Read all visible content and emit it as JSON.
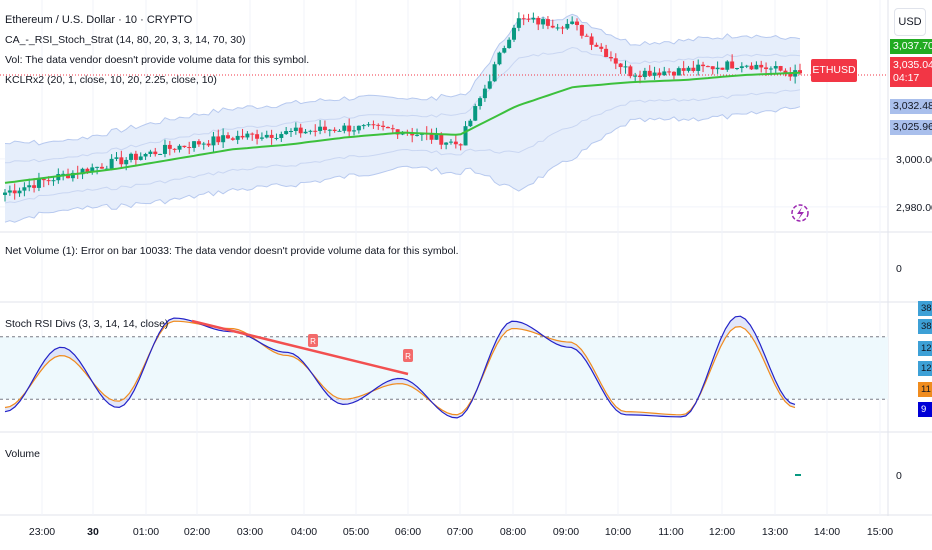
{
  "header": {
    "symbol_title": "Ethereum / U.S. Dollar · 10 · CRYPTO",
    "indicator_1": "CA_-_RSI_Stoch_Strat (14, 80, 20, 3, 3, 14, 70, 30)",
    "indicator_2": "Vol: The data vendor doesn't provide volume data for this symbol.",
    "indicator_3": "KCLRx2 (20, 1, close, 10, 20, 2.25, close, 10)",
    "currency": "USD"
  },
  "panes": {
    "net_volume": {
      "label": "Net Volume (1): Error on bar 10033: The data vendor doesn't provide volume data for this symbol.",
      "axis_value": "0"
    },
    "stoch": {
      "label": "Stoch RSI Divs (3, 3, 14, 14, close)",
      "signal_label": "R"
    },
    "volume": {
      "label": "Volume",
      "axis_value": "0"
    }
  },
  "price_axis": {
    "ticks": [
      "3,000.00",
      "2,980.00"
    ],
    "tags": {
      "upper": "3,037.70",
      "last": "3,035.04",
      "countdown": "04:17",
      "mid": "3,032.48",
      "lower": "3,025.96",
      "symbol": "ETHUSD"
    }
  },
  "stoch_axis": {
    "tags": {
      "t1": "38",
      "t2": "38",
      "t3": "12",
      "t4": "12",
      "t5": "11",
      "t6": "9"
    }
  },
  "time_axis": [
    "23:00",
    "30",
    "01:00",
    "02:00",
    "03:00",
    "04:00",
    "05:00",
    "06:00",
    "07:00",
    "08:00",
    "09:00",
    "10:00",
    "11:00",
    "12:00",
    "13:00",
    "14:00",
    "15:00"
  ],
  "colors": {
    "up": "#089981",
    "down": "#f23645",
    "basis": "#3cc03c",
    "band": "#b7c9ef",
    "k_line": "#2323c8",
    "d_line": "#f08c1e",
    "div_line": "#f25050"
  },
  "chart_data": [
    {
      "type": "candlestick",
      "title": "Ethereum / U.S. Dollar · 10 · CRYPTO",
      "x": [
        "23:00",
        "30",
        "01:00",
        "02:00",
        "03:00",
        "04:00",
        "05:00",
        "06:00",
        "07:00",
        "08:00",
        "09:00",
        "10:00",
        "11:00",
        "12:00",
        "13:00"
      ],
      "close": [
        2986,
        2993,
        2999,
        3005,
        3009,
        3011,
        3013,
        3012,
        3006,
        3058,
        3056,
        3036,
        3037,
        3040,
        3035.04
      ],
      "basis": [
        2990,
        2993,
        2996,
        3000,
        3004,
        3006,
        3009,
        3011,
        3010,
        3022,
        3030,
        3032,
        3033,
        3035,
        3036
      ],
      "ylim": [
        2972,
        3063
      ]
    },
    {
      "type": "line",
      "title": "Stoch RSI Divs (3, 3, 14, 14, close)",
      "x": [
        "23:00",
        "30",
        "01:00",
        "02:00",
        "03:00",
        "04:00",
        "05:00",
        "06:00",
        "07:00",
        "08:00",
        "09:00",
        "10:00",
        "11:00",
        "12:00",
        "13:00"
      ],
      "series": [
        {
          "name": "K",
          "values": [
            8,
            70,
            12,
            98,
            85,
            65,
            15,
            40,
            2,
            95,
            70,
            5,
            3,
            100,
            15
          ]
        },
        {
          "name": "D",
          "values": [
            12,
            62,
            18,
            95,
            88,
            62,
            20,
            35,
            5,
            88,
            75,
            8,
            5,
            90,
            12
          ]
        }
      ],
      "levels": [
        80,
        20
      ],
      "ylim": [
        0,
        100
      ]
    }
  ]
}
